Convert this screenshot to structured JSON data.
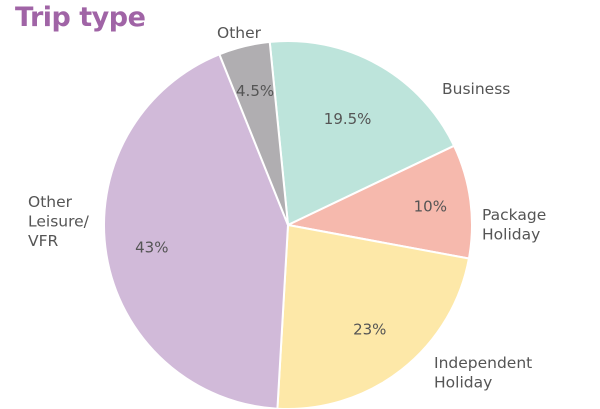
{
  "chart_data": {
    "type": "pie",
    "title": "Trip type",
    "slices": [
      {
        "key": "business",
        "label": "Business",
        "value": 19.5,
        "display": "19.5%",
        "color": "#bde4db"
      },
      {
        "key": "package",
        "label": "Package Holiday",
        "lines": [
          "Package",
          "Holiday"
        ],
        "value": 10,
        "display": "10%",
        "color": "#f6b9ad"
      },
      {
        "key": "independent",
        "label": "Independent Holiday",
        "lines": [
          "Independent",
          "Holiday"
        ],
        "value": 23,
        "display": "23%",
        "color": "#fde8a8"
      },
      {
        "key": "leisure",
        "label": "Other Leisure/ VFR",
        "lines": [
          "Other",
          "Leisure/",
          "VFR"
        ],
        "value": 43,
        "display": "43%",
        "color": "#d1bad9"
      },
      {
        "key": "other",
        "label": "Other",
        "lines": [
          "Other"
        ],
        "value": 4.5,
        "display": "4.5%",
        "color": "#b0aeb1"
      }
    ]
  },
  "colors": {
    "title": "#a064a6",
    "text": "#555555",
    "slice_border": "#ffffff"
  }
}
